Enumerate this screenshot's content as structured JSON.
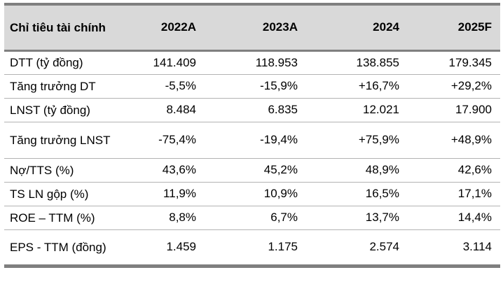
{
  "table": {
    "headers": [
      "Chỉ tiêu tài chính",
      "2022A",
      "2023A",
      "2024",
      "2025F"
    ],
    "rows": [
      {
        "label": "DTT (tỷ đồng)",
        "values": [
          "141.409",
          "118.953",
          "138.855",
          "179.345"
        ]
      },
      {
        "label": "Tăng trưởng DT",
        "values": [
          "-5,5%",
          "-15,9%",
          "+16,7%",
          "+29,2%"
        ]
      },
      {
        "label": "LNST (tỷ đồng)",
        "values": [
          "8.484",
          "6.835",
          "12.021",
          "17.900"
        ]
      },
      {
        "label": "Tăng trưởng LNST",
        "values": [
          "-75,4%",
          "-19,4%",
          "+75,9%",
          "+48,9%"
        ]
      },
      {
        "label": "Nợ/TTS (%)",
        "values": [
          "43,6%",
          "45,2%",
          "48,9%",
          "42,6%"
        ]
      },
      {
        "label": "TS LN gộp (%)",
        "values": [
          "11,9%",
          "10,9%",
          "16,5%",
          "17,1%"
        ]
      },
      {
        "label": "ROE – TTM (%)",
        "values": [
          "8,8%",
          "6,7%",
          "13,7%",
          "14,4%"
        ]
      },
      {
        "label": "EPS - TTM (đồng)",
        "values": [
          "1.459",
          "1.175",
          "2.574",
          "3.114"
        ]
      }
    ]
  }
}
